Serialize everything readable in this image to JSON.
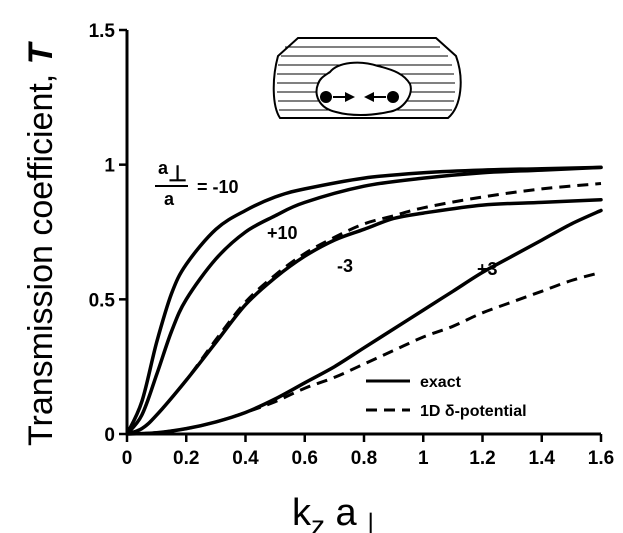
{
  "chart_data": {
    "type": "line",
    "xlabel_main": "k",
    "xlabel_sub1": "z",
    "xlabel_mid": " a",
    "xlabel_sub2": "⊥",
    "ylabel_text": "Transmission   coefficient, ",
    "ylabel_symbol": "T",
    "xlim": [
      0,
      1.6
    ],
    "ylim": [
      0,
      1.5
    ],
    "x_ticks": [
      "0",
      "0.2",
      "0.4",
      "0.6",
      "0.8",
      "1",
      "1.2",
      "1.4",
      "1.6"
    ],
    "y_ticks": [
      "0",
      "0.5",
      "1",
      "1.5"
    ],
    "grid": false,
    "legend_position": "bottom-right",
    "legend": [
      {
        "label": "exact",
        "style": "solid"
      },
      {
        "label": "1D δ-potential",
        "style": "dashed"
      }
    ],
    "ratio_label": {
      "numerator": "a",
      "numerator_sub": "⊥",
      "denominator": "a",
      "eq": "= -10"
    },
    "curve_labels": [
      "+10",
      "-3",
      "+3"
    ],
    "series": [
      {
        "style": "solid",
        "x": [
          0,
          0.05,
          0.1,
          0.15,
          0.2,
          0.3,
          0.4,
          0.5,
          0.6,
          0.8,
          1.0,
          1.2,
          1.4,
          1.6
        ],
        "y": [
          0,
          0.12,
          0.34,
          0.52,
          0.63,
          0.76,
          0.83,
          0.88,
          0.91,
          0.95,
          0.97,
          0.98,
          0.985,
          0.99
        ]
      },
      {
        "style": "solid",
        "x": [
          0,
          0.05,
          0.1,
          0.15,
          0.2,
          0.3,
          0.4,
          0.5,
          0.6,
          0.8,
          1.0,
          1.2,
          1.4,
          1.6
        ],
        "y": [
          0,
          0.07,
          0.22,
          0.38,
          0.5,
          0.65,
          0.75,
          0.81,
          0.86,
          0.92,
          0.95,
          0.97,
          0.98,
          0.99
        ]
      },
      {
        "style": "solid",
        "x": [
          0,
          0.05,
          0.1,
          0.2,
          0.3,
          0.4,
          0.5,
          0.6,
          0.7,
          0.8,
          0.9,
          1.0,
          1.2,
          1.4,
          1.6
        ],
        "y": [
          0,
          0.02,
          0.07,
          0.2,
          0.34,
          0.48,
          0.58,
          0.66,
          0.72,
          0.76,
          0.8,
          0.82,
          0.85,
          0.86,
          0.87
        ]
      },
      {
        "style": "dashed",
        "x": [
          0,
          0.05,
          0.1,
          0.2,
          0.3,
          0.4,
          0.5,
          0.6,
          0.7,
          0.8,
          0.9,
          1.0,
          1.2,
          1.4,
          1.6
        ],
        "y": [
          0,
          0.02,
          0.07,
          0.2,
          0.35,
          0.49,
          0.59,
          0.67,
          0.73,
          0.78,
          0.81,
          0.84,
          0.88,
          0.91,
          0.93
        ]
      },
      {
        "style": "solid",
        "x": [
          0,
          0.1,
          0.2,
          0.3,
          0.4,
          0.5,
          0.6,
          0.7,
          0.8,
          0.9,
          1.0,
          1.1,
          1.2,
          1.3,
          1.4,
          1.5,
          1.6
        ],
        "y": [
          0,
          0.005,
          0.02,
          0.045,
          0.08,
          0.13,
          0.19,
          0.25,
          0.32,
          0.39,
          0.46,
          0.53,
          0.6,
          0.66,
          0.72,
          0.78,
          0.83
        ]
      },
      {
        "style": "dashed",
        "x": [
          0,
          0.1,
          0.2,
          0.3,
          0.4,
          0.5,
          0.6,
          0.7,
          0.8,
          0.9,
          1.0,
          1.1,
          1.2,
          1.3,
          1.4,
          1.5,
          1.6
        ],
        "y": [
          0,
          0.005,
          0.02,
          0.045,
          0.08,
          0.12,
          0.17,
          0.21,
          0.26,
          0.31,
          0.36,
          0.4,
          0.45,
          0.49,
          0.53,
          0.57,
          0.6
        ]
      }
    ]
  }
}
